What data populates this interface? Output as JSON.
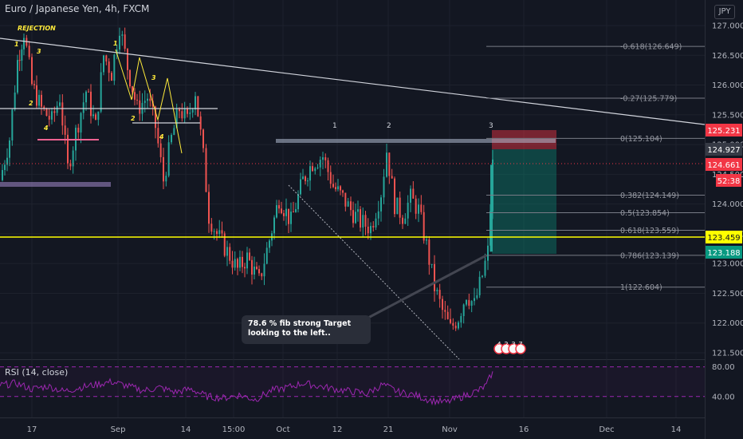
{
  "header": {
    "title": "Euro / Japanese Yen, 4h, FXCM",
    "currency": "JPY"
  },
  "rsi": {
    "label": "RSI (14, close)",
    "levels": [
      80,
      40
    ]
  },
  "note": {
    "text": "78.6 % fib strong Target looking to the left.."
  },
  "annotations": {
    "rejection": "REJECTION",
    "left_waves": [
      "1",
      "2",
      "3",
      "4"
    ],
    "mid_waves": [
      "1",
      "2",
      "3",
      "4"
    ],
    "right_waves": [
      "1",
      "2",
      "3"
    ]
  },
  "price_tags": [
    {
      "value": "125.231",
      "color": "#f23645"
    },
    {
      "value": "124.927",
      "color": "#363a45"
    },
    {
      "value": "124.661",
      "color": "#f23645"
    },
    {
      "value": "52:38",
      "color": "#f23645"
    },
    {
      "value": "123.459",
      "color": "#ffff00"
    },
    {
      "value": "123.188",
      "color": "#089981"
    }
  ],
  "fib_levels": [
    {
      "label": "-0.618(126.649)",
      "price": 126.649
    },
    {
      "label": "-0.27(125.779)",
      "price": 125.779
    },
    {
      "label": "0(125.104)",
      "price": 125.104
    },
    {
      "label": "0.382(124.149)",
      "price": 124.149
    },
    {
      "label": "0.5(123.854)",
      "price": 123.854
    },
    {
      "label": "0.618(123.559)",
      "price": 123.559
    },
    {
      "label": "0.786(123.139)",
      "price": 123.139
    },
    {
      "label": "1(122.604)",
      "price": 122.604
    }
  ],
  "events": [
    "4",
    "2",
    "3",
    "7"
  ],
  "colors": {
    "up": "#26a69a",
    "down": "#ef5350",
    "rsi": "#9c27b0",
    "support": "#ffff00",
    "annotation": "#ffeb3b"
  },
  "chart_data": {
    "type": "candlestick",
    "symbol": "EURJPY",
    "timeframe": "4h",
    "ylim": [
      121.4,
      127.25
    ],
    "y_ticks": [
      "127.000",
      "126.500",
      "126.000",
      "125.500",
      "125.000",
      "124.500",
      "124.000",
      "123.500",
      "123.000",
      "122.500",
      "122.000",
      "121.500"
    ],
    "x_ticks": [
      "17",
      "Sep",
      "14",
      "15:00",
      "Oct",
      "12",
      "21",
      "Nov",
      "16",
      "Dec",
      "14"
    ],
    "key_prices": {
      "support": 123.459,
      "last": 124.661,
      "stop_zone_top": 125.231,
      "target": 123.188
    },
    "close_path": [
      [
        0,
        124.4
      ],
      [
        12,
        125.1
      ],
      [
        22,
        126.4
      ],
      [
        30,
        126.9
      ],
      [
        40,
        126.0
      ],
      [
        52,
        125.6
      ],
      [
        65,
        125.4
      ],
      [
        75,
        125.8
      ],
      [
        85,
        124.6
      ],
      [
        95,
        125.2
      ],
      [
        108,
        125.9
      ],
      [
        120,
        125.3
      ],
      [
        130,
        126.5
      ],
      [
        140,
        126.2
      ],
      [
        150,
        127.0
      ],
      [
        160,
        126.3
      ],
      [
        172,
        125.6
      ],
      [
        185,
        125.8
      ],
      [
        195,
        125.3
      ],
      [
        205,
        124.4
      ],
      [
        215,
        125.1
      ],
      [
        225,
        125.6
      ],
      [
        235,
        125.4
      ],
      [
        245,
        125.9
      ],
      [
        255,
        124.8
      ],
      [
        262,
        123.8
      ],
      [
        272,
        123.5
      ],
      [
        285,
        123.2
      ],
      [
        298,
        122.9
      ],
      [
        310,
        123.1
      ],
      [
        325,
        122.7
      ],
      [
        338,
        123.4
      ],
      [
        350,
        124.1
      ],
      [
        365,
        123.7
      ],
      [
        380,
        124.4
      ],
      [
        392,
        124.7
      ],
      [
        405,
        124.8
      ],
      [
        418,
        124.3
      ],
      [
        430,
        124.1
      ],
      [
        440,
        123.9
      ],
      [
        452,
        123.7
      ],
      [
        465,
        123.6
      ],
      [
        478,
        124.2
      ],
      [
        485,
        124.9
      ],
      [
        495,
        124.0
      ],
      [
        505,
        123.8
      ],
      [
        515,
        124.1
      ],
      [
        525,
        123.9
      ],
      [
        535,
        123.3
      ],
      [
        545,
        122.6
      ],
      [
        555,
        122.2
      ],
      [
        565,
        121.9
      ],
      [
        575,
        122.1
      ],
      [
        585,
        122.5
      ],
      [
        595,
        122.3
      ],
      [
        605,
        122.8
      ],
      [
        612,
        123.2
      ],
      [
        618,
        124.66
      ]
    ],
    "rsi_path": [
      [
        0,
        55
      ],
      [
        20,
        58
      ],
      [
        40,
        50
      ],
      [
        60,
        54
      ],
      [
        80,
        47
      ],
      [
        100,
        52
      ],
      [
        120,
        56
      ],
      [
        140,
        60
      ],
      [
        160,
        54
      ],
      [
        180,
        48
      ],
      [
        200,
        52
      ],
      [
        220,
        46
      ],
      [
        240,
        50
      ],
      [
        260,
        40
      ],
      [
        280,
        38
      ],
      [
        300,
        42
      ],
      [
        320,
        36
      ],
      [
        340,
        48
      ],
      [
        360,
        52
      ],
      [
        380,
        58
      ],
      [
        400,
        54
      ],
      [
        420,
        50
      ],
      [
        440,
        47
      ],
      [
        460,
        44
      ],
      [
        480,
        56
      ],
      [
        500,
        46
      ],
      [
        520,
        42
      ],
      [
        540,
        35
      ],
      [
        560,
        32
      ],
      [
        580,
        40
      ],
      [
        600,
        48
      ],
      [
        610,
        55
      ],
      [
        618,
        74
      ]
    ]
  }
}
